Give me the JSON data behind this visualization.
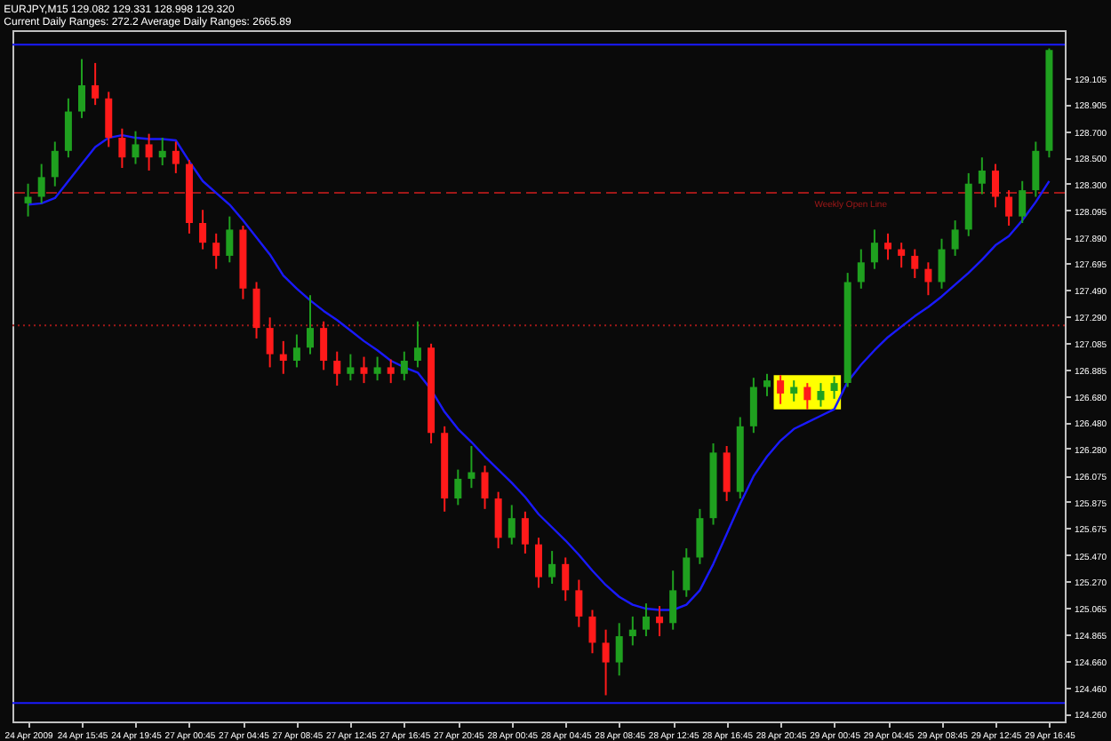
{
  "chart_data": {
    "type": "candlestick",
    "title": "EURJPY,M15  129.082 129.331 128.998 129.320",
    "subtitle": "Current Daily Ranges: 272.2   Average Daily Ranges: 2665.89",
    "categories": [
      "24 Apr 2009",
      null,
      null,
      null,
      "24 Apr 15:45",
      null,
      null,
      null,
      "24 Apr 19:45",
      null,
      null,
      null,
      "27 Apr 00:45",
      null,
      null,
      null,
      "27 Apr 04:45",
      null,
      null,
      null,
      "27 Apr 08:45",
      null,
      null,
      null,
      "27 Apr 12:45",
      null,
      null,
      null,
      "27 Apr 16:45",
      null,
      null,
      null,
      "27 Apr 20:45",
      null,
      null,
      null,
      "28 Apr 00:45",
      null,
      null,
      null,
      "28 Apr 04:45",
      null,
      null,
      null,
      "28 Apr 08:45",
      null,
      null,
      null,
      "28 Apr 12:45",
      null,
      null,
      null,
      "28 Apr 16:45",
      null,
      null,
      null,
      "28 Apr 20:45",
      null,
      null,
      null,
      "29 Apr 00:45",
      null,
      null,
      null,
      "29 Apr 04:45",
      null,
      null,
      null,
      "29 Apr 08:45",
      null,
      null,
      null,
      "29 Apr 12:45",
      null,
      null,
      null,
      "29 Apr 16:45"
    ],
    "ohlc": [
      [
        128.15,
        128.3,
        128.05,
        128.2
      ],
      [
        128.2,
        128.45,
        128.15,
        128.35
      ],
      [
        128.35,
        128.62,
        128.28,
        128.55
      ],
      [
        128.55,
        128.95,
        128.5,
        128.85
      ],
      [
        128.85,
        129.25,
        128.8,
        129.05
      ],
      [
        129.05,
        129.22,
        128.9,
        128.95
      ],
      [
        128.95,
        129.0,
        128.58,
        128.65
      ],
      [
        128.65,
        128.72,
        128.42,
        128.5
      ],
      [
        128.5,
        128.7,
        128.45,
        128.6
      ],
      [
        128.6,
        128.68,
        128.4,
        128.5
      ],
      [
        128.5,
        128.65,
        128.44,
        128.55
      ],
      [
        128.55,
        128.62,
        128.38,
        128.45
      ],
      [
        128.45,
        128.48,
        127.92,
        128.0
      ],
      [
        128.0,
        128.1,
        127.8,
        127.85
      ],
      [
        127.85,
        127.92,
        127.65,
        127.75
      ],
      [
        127.75,
        128.05,
        127.7,
        127.95
      ],
      [
        127.95,
        127.98,
        127.42,
        127.5
      ],
      [
        127.5,
        127.55,
        127.12,
        127.2
      ],
      [
        127.2,
        127.28,
        126.9,
        127.0
      ],
      [
        127.0,
        127.1,
        126.85,
        126.95
      ],
      [
        126.95,
        127.15,
        126.9,
        127.05
      ],
      [
        127.05,
        127.45,
        127.0,
        127.2
      ],
      [
        127.2,
        127.25,
        126.88,
        126.95
      ],
      [
        126.95,
        127.02,
        126.76,
        126.85
      ],
      [
        126.85,
        127.0,
        126.8,
        126.9
      ],
      [
        126.9,
        126.98,
        126.78,
        126.85
      ],
      [
        126.85,
        126.98,
        126.8,
        126.9
      ],
      [
        126.9,
        126.96,
        126.78,
        126.85
      ],
      [
        126.85,
        127.02,
        126.8,
        126.95
      ],
      [
        126.95,
        127.25,
        126.9,
        127.05
      ],
      [
        127.05,
        127.08,
        126.32,
        126.4
      ],
      [
        126.4,
        126.45,
        125.8,
        125.9
      ],
      [
        125.9,
        126.12,
        125.85,
        126.05
      ],
      [
        126.05,
        126.3,
        125.98,
        126.1
      ],
      [
        126.1,
        126.15,
        125.82,
        125.9
      ],
      [
        125.9,
        125.95,
        125.52,
        125.6
      ],
      [
        125.6,
        125.85,
        125.55,
        125.75
      ],
      [
        125.75,
        125.8,
        125.48,
        125.55
      ],
      [
        125.55,
        125.6,
        125.22,
        125.3
      ],
      [
        125.3,
        125.5,
        125.25,
        125.4
      ],
      [
        125.4,
        125.45,
        125.12,
        125.2
      ],
      [
        125.2,
        125.28,
        124.92,
        125.0
      ],
      [
        125.0,
        125.05,
        124.72,
        124.8
      ],
      [
        124.8,
        124.9,
        124.4,
        124.65
      ],
      [
        124.65,
        124.95,
        124.55,
        124.85
      ],
      [
        124.85,
        125.0,
        124.78,
        124.9
      ],
      [
        124.9,
        125.1,
        124.85,
        125.0
      ],
      [
        125.0,
        125.08,
        124.85,
        124.95
      ],
      [
        124.95,
        125.35,
        124.9,
        125.2
      ],
      [
        125.2,
        125.52,
        125.15,
        125.45
      ],
      [
        125.45,
        125.82,
        125.4,
        125.75
      ],
      [
        125.75,
        126.32,
        125.7,
        126.25
      ],
      [
        126.25,
        126.3,
        125.88,
        125.95
      ],
      [
        125.95,
        126.52,
        125.9,
        126.45
      ],
      [
        126.45,
        126.82,
        126.4,
        126.75
      ],
      [
        126.75,
        126.85,
        126.68,
        126.8
      ],
      [
        126.8,
        126.84,
        126.62,
        126.7
      ],
      [
        126.7,
        126.8,
        126.64,
        126.75
      ],
      [
        126.75,
        126.78,
        126.58,
        126.65
      ],
      [
        126.65,
        126.78,
        126.6,
        126.72
      ],
      [
        126.72,
        126.83,
        126.66,
        126.78
      ],
      [
        126.78,
        127.62,
        126.75,
        127.55
      ],
      [
        127.55,
        127.8,
        127.5,
        127.7
      ],
      [
        127.7,
        127.95,
        127.65,
        127.85
      ],
      [
        127.85,
        127.92,
        127.72,
        127.8
      ],
      [
        127.8,
        127.85,
        127.66,
        127.75
      ],
      [
        127.75,
        127.8,
        127.58,
        127.65
      ],
      [
        127.65,
        127.7,
        127.45,
        127.55
      ],
      [
        127.55,
        127.88,
        127.5,
        127.8
      ],
      [
        127.8,
        128.02,
        127.75,
        127.95
      ],
      [
        127.95,
        128.38,
        127.9,
        128.3
      ],
      [
        128.3,
        128.5,
        128.22,
        128.4
      ],
      [
        128.4,
        128.45,
        128.12,
        128.2
      ],
      [
        128.2,
        128.25,
        127.98,
        128.05
      ],
      [
        128.05,
        128.32,
        128.0,
        128.25
      ],
      [
        128.25,
        128.62,
        128.2,
        128.55
      ],
      [
        128.55,
        129.331,
        128.5,
        129.32
      ]
    ],
    "colors": [
      "#1fa01f",
      "#1fa01f",
      "#1fa01f",
      "#1fa01f",
      "#1fa01f",
      "#ff1a1a",
      "#ff1a1a",
      "#ff1a1a",
      "#1fa01f",
      "#ff1a1a",
      "#1fa01f",
      "#ff1a1a",
      "#ff1a1a",
      "#ff1a1a",
      "#ff1a1a",
      "#1fa01f",
      "#ff1a1a",
      "#ff1a1a",
      "#ff1a1a",
      "#ff1a1a",
      "#1fa01f",
      "#1fa01f",
      "#ff1a1a",
      "#ff1a1a",
      "#1fa01f",
      "#ff1a1a",
      "#1fa01f",
      "#ff1a1a",
      "#1fa01f",
      "#1fa01f",
      "#ff1a1a",
      "#ff1a1a",
      "#1fa01f",
      "#1fa01f",
      "#ff1a1a",
      "#ff1a1a",
      "#1fa01f",
      "#ff1a1a",
      "#ff1a1a",
      "#1fa01f",
      "#ff1a1a",
      "#ff1a1a",
      "#ff1a1a",
      "#ff1a1a",
      "#1fa01f",
      "#1fa01f",
      "#1fa01f",
      "#ff1a1a",
      "#1fa01f",
      "#1fa01f",
      "#1fa01f",
      "#1fa01f",
      "#ff1a1a",
      "#1fa01f",
      "#1fa01f",
      "#1fa01f",
      "#ff1a1a",
      "#1fa01f",
      "#ff1a1a",
      "#1fa01f",
      "#1fa01f",
      "#1fa01f",
      "#1fa01f",
      "#1fa01f",
      "#ff1a1a",
      "#ff1a1a",
      "#ff1a1a",
      "#ff1a1a",
      "#1fa01f",
      "#1fa01f",
      "#1fa01f",
      "#1fa01f",
      "#ff1a1a",
      "#ff1a1a",
      "#1fa01f",
      "#1fa01f",
      "#1fa01f"
    ],
    "series": [
      {
        "type": "line",
        "color": "#1a1aff",
        "values": [
          128.14,
          128.15,
          128.19,
          128.32,
          128.45,
          128.58,
          128.65,
          128.67,
          128.65,
          128.64,
          128.64,
          128.63,
          128.47,
          128.32,
          128.23,
          128.14,
          128.02,
          127.89,
          127.76,
          127.6,
          127.5,
          127.41,
          127.33,
          127.26,
          127.18,
          127.1,
          127.03,
          126.95,
          126.9,
          126.86,
          126.73,
          126.56,
          126.43,
          126.33,
          126.22,
          126.12,
          126.02,
          125.91,
          125.78,
          125.68,
          125.58,
          125.47,
          125.35,
          125.24,
          125.15,
          125.09,
          125.06,
          125.05,
          125.05,
          125.09,
          125.2,
          125.4,
          125.63,
          125.86,
          126.07,
          126.22,
          126.34,
          126.43,
          126.48,
          126.53,
          126.58,
          126.79,
          126.92,
          127.03,
          127.13,
          127.21,
          127.29,
          127.36,
          127.44,
          127.53,
          127.62,
          127.72,
          127.83,
          127.9,
          128.02,
          128.16,
          128.32
        ]
      }
    ],
    "ylim": [
      124.2,
      129.47
    ],
    "yticks": [
      {
        "value": 129.105,
        "label": "129.105"
      },
      {
        "value": 128.905,
        "label": "128.905"
      },
      {
        "value": 128.7,
        "label": "128.700"
      },
      {
        "value": 128.5,
        "label": "128.500"
      },
      {
        "value": 128.3,
        "label": "128.300"
      },
      {
        "value": 128.095,
        "label": "128.095"
      },
      {
        "value": 127.89,
        "label": "127.890"
      },
      {
        "value": 127.695,
        "label": "127.695"
      },
      {
        "value": 127.49,
        "label": "127.490"
      },
      {
        "value": 127.29,
        "label": "127.290"
      },
      {
        "value": 127.085,
        "label": "127.085"
      },
      {
        "value": 126.885,
        "label": "126.885"
      },
      {
        "value": 126.68,
        "label": "126.680"
      },
      {
        "value": 126.48,
        "label": "126.480"
      },
      {
        "value": 126.28,
        "label": "126.280"
      },
      {
        "value": 126.075,
        "label": "126.075"
      },
      {
        "value": 125.875,
        "label": "125.875"
      },
      {
        "value": 125.675,
        "label": "125.675"
      },
      {
        "value": 125.47,
        "label": "125.470"
      },
      {
        "value": 125.27,
        "label": "125.270"
      },
      {
        "value": 125.065,
        "label": "125.065"
      },
      {
        "value": 124.865,
        "label": "124.865"
      },
      {
        "value": 124.66,
        "label": "124.660"
      },
      {
        "value": 124.46,
        "label": "124.460"
      },
      {
        "value": 124.26,
        "label": "124.260"
      }
    ],
    "ref_lines": [
      {
        "axis": "y",
        "value": 129.36,
        "color": "#1a1aff",
        "line_style": "solid"
      },
      {
        "axis": "y",
        "value": 128.23,
        "label": "Weekly Open Line",
        "color": "#a01818",
        "line_style": "dashed"
      },
      {
        "axis": "y",
        "value": 127.22,
        "color": "#a01818",
        "line_style": "dotted"
      },
      {
        "axis": "y",
        "value": 124.34,
        "color": "#1a1aff",
        "line_style": "solid"
      }
    ],
    "bands": [
      {
        "axis": "x",
        "from": "28 Apr 20:45",
        "to": "29 Apr 00:45",
        "color": "#ffff00"
      }
    ]
  }
}
